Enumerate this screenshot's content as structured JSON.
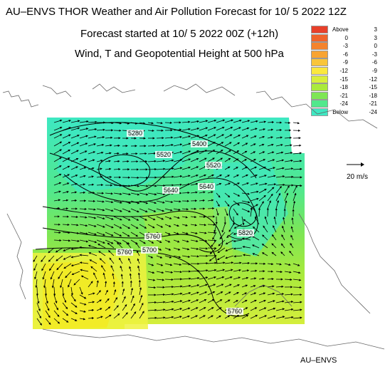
{
  "header": {
    "title": "AU–ENVS THOR Weather and Air Pollution Forecast for 10/ 5 2022  12Z",
    "subtitle1": "Forecast started at 10/ 5 2022  00Z (+12h)",
    "subtitle2": "Wind, T and Geopotential Height at 500 hPa"
  },
  "legend": {
    "items": [
      {
        "low": "Above",
        "high": "3",
        "color": "#e8402a"
      },
      {
        "low": "0",
        "high": "3",
        "color": "#f0632a"
      },
      {
        "low": "-3",
        "high": "0",
        "color": "#f4832c"
      },
      {
        "low": "-6",
        "high": "-3",
        "color": "#f8a432"
      },
      {
        "low": "-9",
        "high": "-6",
        "color": "#f9c53a"
      },
      {
        "low": "-12",
        "high": "-9",
        "color": "#fbe83e"
      },
      {
        "low": "-15",
        "high": "-12",
        "color": "#d9ee3c"
      },
      {
        "low": "-18",
        "high": "-15",
        "color": "#aaea3c"
      },
      {
        "low": "-21",
        "high": "-18",
        "color": "#7ee654"
      },
      {
        "low": "-24",
        "high": "-21",
        "color": "#52e88c"
      },
      {
        "low": "Below",
        "high": "-24",
        "color": "#3ee8c2"
      }
    ]
  },
  "map": {
    "contour_labels": [
      "5280",
      "5520",
      "5400",
      "5640",
      "5760",
      "5640",
      "5700",
      "5520",
      "5760",
      "5820",
      "5760"
    ]
  },
  "scale": {
    "label": "20 m/s"
  },
  "footer": {
    "credit": "AU–ENVS"
  }
}
